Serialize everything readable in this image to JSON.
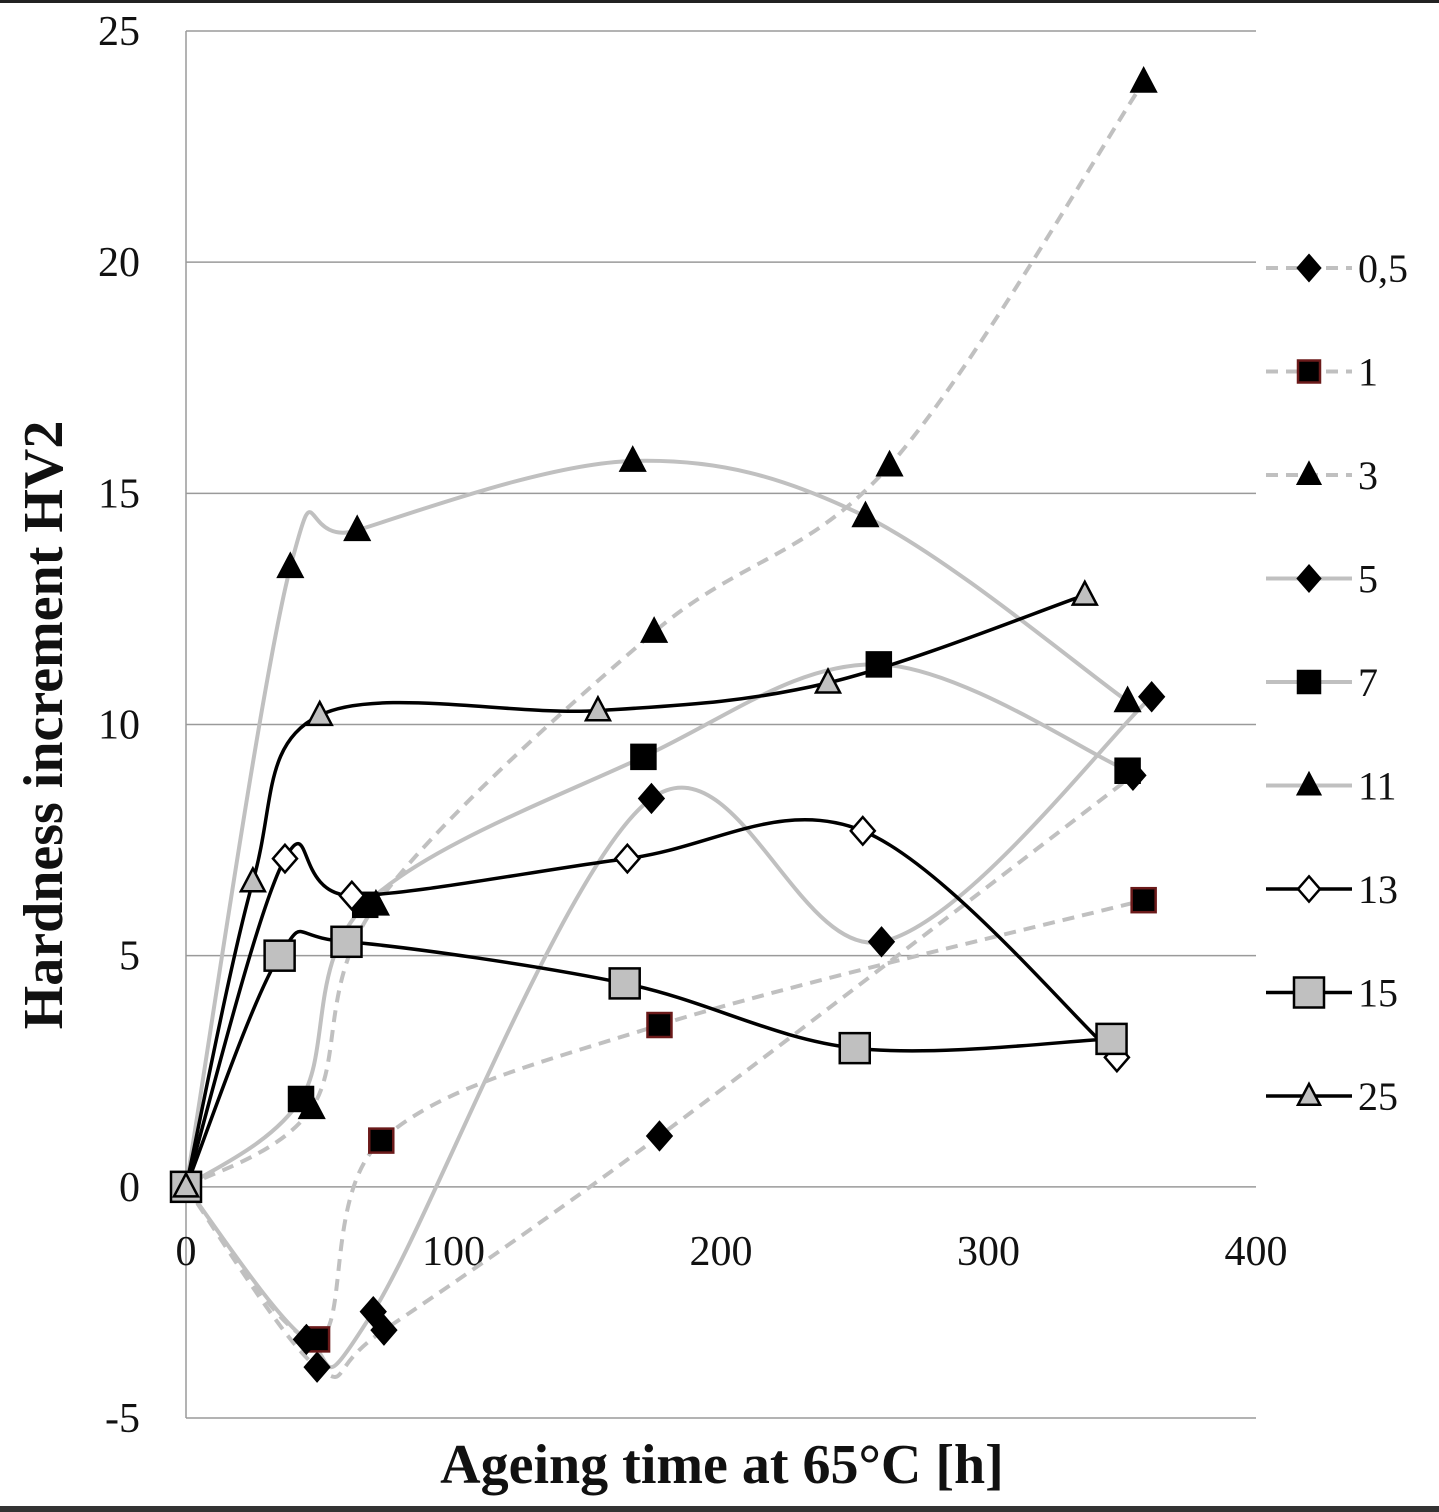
{
  "chart_data": {
    "type": "line",
    "title": "",
    "xlabel": "Ageing time at 65°C [h]",
    "ylabel": "Hardness increment HV2",
    "xlim": [
      0,
      400
    ],
    "ylim": [
      -5,
      25
    ],
    "xticks": [
      0,
      100,
      200,
      300,
      400
    ],
    "yticks": [
      -5,
      0,
      5,
      10,
      15,
      20,
      25
    ],
    "grid": "horizontal",
    "legend_position": "right",
    "series": [
      {
        "name": "0,5",
        "line_color": "#c0c0c0",
        "dashed": true,
        "marker": "diamond",
        "marker_fill": "#000000",
        "marker_stroke": "#000000",
        "x": [
          0,
          49,
          74,
          177,
          354
        ],
        "y": [
          0,
          -3.9,
          -3.1,
          1.1,
          8.9
        ]
      },
      {
        "name": "1",
        "line_color": "#c0c0c0",
        "dashed": true,
        "marker": "square",
        "marker_fill": "#000000",
        "marker_stroke": "#6b1a1a",
        "x": [
          0,
          49,
          73,
          177,
          358
        ],
        "y": [
          0,
          -3.3,
          1.0,
          3.5,
          6.2
        ]
      },
      {
        "name": "3",
        "line_color": "#c0c0c0",
        "dashed": true,
        "marker": "triangle",
        "marker_fill": "#000000",
        "marker_stroke": "#000000",
        "x": [
          0,
          47,
          71,
          175,
          263,
          358
        ],
        "y": [
          0,
          1.7,
          6.1,
          12.0,
          15.6,
          23.9
        ]
      },
      {
        "name": "5",
        "line_color": "#c0c0c0",
        "dashed": false,
        "marker": "diamond",
        "marker_fill": "#000000",
        "marker_stroke": "#000000",
        "x": [
          0,
          45,
          70,
          174,
          260,
          361
        ],
        "y": [
          0,
          -3.3,
          -2.7,
          8.4,
          5.3,
          10.6
        ]
      },
      {
        "name": "7",
        "line_color": "#c0c0c0",
        "dashed": false,
        "marker": "square",
        "marker_fill": "#000000",
        "marker_stroke": "#000000",
        "x": [
          0,
          43,
          67,
          171,
          259,
          352
        ],
        "y": [
          0,
          1.9,
          6.1,
          9.3,
          11.3,
          9.0
        ]
      },
      {
        "name": "11",
        "line_color": "#c0c0c0",
        "dashed": false,
        "marker": "triangle",
        "marker_fill": "#000000",
        "marker_stroke": "#000000",
        "x": [
          0,
          39,
          64,
          167,
          254,
          352
        ],
        "y": [
          0,
          13.4,
          14.2,
          15.7,
          14.5,
          10.5
        ]
      },
      {
        "name": "13",
        "line_color": "#000000",
        "dashed": false,
        "marker": "diamond",
        "marker_fill": "#ffffff",
        "marker_stroke": "#000000",
        "x": [
          0,
          37,
          62,
          165,
          253,
          348
        ],
        "y": [
          0,
          7.1,
          6.3,
          7.1,
          7.7,
          2.8
        ]
      },
      {
        "name": "15",
        "line_color": "#000000",
        "dashed": false,
        "marker": "square",
        "marker_fill": "#c0c0c0",
        "marker_stroke": "#000000",
        "x": [
          0,
          35,
          60,
          164,
          250,
          346
        ],
        "y": [
          0,
          5.0,
          5.3,
          4.4,
          3.0,
          3.2
        ]
      },
      {
        "name": "25",
        "line_color": "#000000",
        "dashed": false,
        "marker": "triangle",
        "marker_fill": "#c0c0c0",
        "marker_stroke": "#000000",
        "x": [
          0,
          25,
          50,
          154,
          240,
          336
        ],
        "y": [
          0,
          6.6,
          10.2,
          10.3,
          10.9,
          12.8
        ]
      }
    ]
  }
}
